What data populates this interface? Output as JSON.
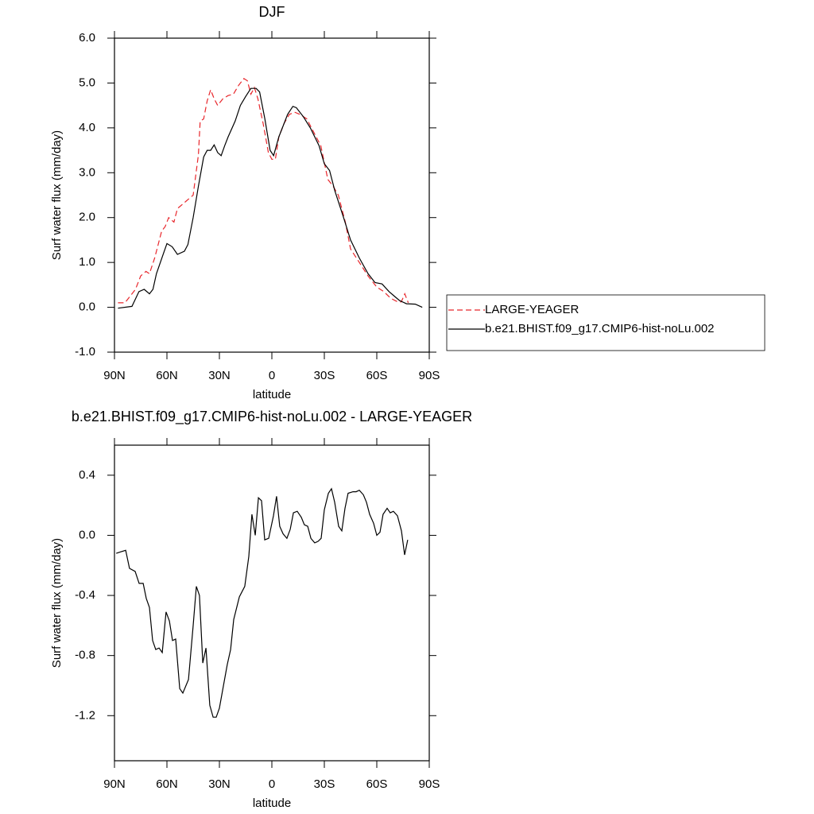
{
  "chart_data": [
    {
      "type": "line",
      "title": "DJF",
      "xlabel": "latitude",
      "ylabel": "Surf water flux (mm/day)",
      "xlim": [
        90,
        -90
      ],
      "ylim": [
        -1,
        6
      ],
      "xticks": [
        {
          "value": 90,
          "label": "90N"
        },
        {
          "value": 60,
          "label": "60N"
        },
        {
          "value": 30,
          "label": "30N"
        },
        0,
        {
          "value": -30,
          "label": "30S"
        },
        {
          "value": -60,
          "label": "60S"
        },
        {
          "value": -90,
          "label": "90S"
        }
      ],
      "yticks": [
        {
          "value": -1,
          "label": "-1.0"
        },
        {
          "value": 0,
          "label": "0.0"
        },
        {
          "value": 1,
          "label": "1.0"
        },
        {
          "value": 2,
          "label": "2.0"
        },
        {
          "value": 3,
          "label": "3.0"
        },
        {
          "value": 4,
          "label": "4.0"
        },
        {
          "value": 5,
          "label": "5.0"
        },
        {
          "value": 6,
          "label": "6.0"
        }
      ],
      "series": [
        {
          "name": "LARGE-YEAGER",
          "color": "#e8262b",
          "line_style": "dashed",
          "x": [
            88,
            84,
            81,
            78,
            75,
            72,
            70,
            67,
            63,
            61,
            59,
            56,
            54,
            51,
            48,
            45,
            42,
            41,
            39,
            37,
            35,
            33,
            31,
            28,
            25,
            22,
            19,
            16,
            14,
            12,
            10,
            8,
            5,
            2,
            0,
            -2,
            -4,
            -7,
            -10,
            -13,
            -16,
            -20,
            -24,
            -28,
            -32,
            -35,
            -38,
            -42,
            -45,
            -50,
            -55,
            -60,
            -64,
            -68,
            -72,
            -74,
            -76,
            -78
          ],
          "values": [
            0.1,
            0.1,
            0.25,
            0.4,
            0.7,
            0.8,
            0.75,
            1.1,
            1.7,
            1.8,
            2.0,
            1.9,
            2.2,
            2.3,
            2.4,
            2.5,
            3.4,
            4.15,
            4.2,
            4.6,
            4.85,
            4.65,
            4.5,
            4.65,
            4.72,
            4.75,
            4.95,
            5.1,
            5.05,
            4.75,
            4.9,
            4.65,
            4.1,
            3.45,
            3.3,
            3.3,
            3.8,
            4.1,
            4.3,
            4.35,
            4.3,
            4.2,
            3.9,
            3.6,
            2.85,
            2.7,
            2.5,
            1.9,
            1.3,
            1.0,
            0.7,
            0.45,
            0.35,
            0.2,
            0.12,
            0.12,
            0.3,
            0.1
          ]
        },
        {
          "name": "b.e21.BHIST.f09_g17.CMIP6-hist-noLu.002",
          "color": "#000000",
          "line_style": "solid",
          "x": [
            88,
            80,
            76,
            73,
            70,
            68,
            66,
            62,
            60,
            57,
            54,
            50,
            48,
            45,
            42,
            39,
            37,
            35,
            33,
            31,
            29,
            27,
            25,
            21,
            18,
            15,
            12,
            9,
            7,
            4,
            1,
            -1,
            -4,
            -6,
            -9,
            -12,
            -14,
            -18,
            -22,
            -27,
            -30,
            -33,
            -36,
            -41,
            -45,
            -50,
            -55,
            -59,
            -63,
            -67,
            -70,
            -73,
            -77,
            -82,
            -86
          ],
          "values": [
            -0.02,
            0.02,
            0.35,
            0.4,
            0.3,
            0.4,
            0.75,
            1.2,
            1.42,
            1.35,
            1.18,
            1.25,
            1.4,
            2.0,
            2.7,
            3.35,
            3.5,
            3.5,
            3.62,
            3.45,
            3.38,
            3.6,
            3.8,
            4.15,
            4.5,
            4.7,
            4.88,
            4.88,
            4.8,
            4.2,
            3.5,
            3.38,
            3.8,
            4.0,
            4.3,
            4.48,
            4.45,
            4.25,
            4.0,
            3.6,
            3.2,
            3.05,
            2.6,
            2.0,
            1.5,
            1.1,
            0.75,
            0.55,
            0.52,
            0.35,
            0.25,
            0.15,
            0.08,
            0.07,
            0.0
          ]
        }
      ]
    },
    {
      "type": "line",
      "title": "b.e21.BHIST.f09_g17.CMIP6-hist-noLu.002 - LARGE-YEAGER",
      "xlabel": "latitude",
      "ylabel": "Surf water flux (mm/day)",
      "xlim": [
        90,
        -90
      ],
      "ylim": [
        -1.5,
        0.6
      ],
      "xticks": [
        {
          "value": 90,
          "label": "90N"
        },
        {
          "value": 60,
          "label": "60N"
        },
        {
          "value": 30,
          "label": "30N"
        },
        0,
        {
          "value": -30,
          "label": "30S"
        },
        {
          "value": -60,
          "label": "60S"
        },
        {
          "value": -90,
          "label": "90S"
        }
      ],
      "yticks": [
        -1.2,
        -0.8,
        -0.4,
        {
          "value": 0,
          "label": "0.0"
        },
        0.4
      ],
      "series": [
        {
          "color": "#000000",
          "line_style": "solid",
          "x": [
            89,
            86.4,
            83.6,
            81.4,
            78.2,
            75.9,
            73.6,
            71.8,
            70,
            68.2,
            66.4,
            64.5,
            62.7,
            60.5,
            58.6,
            56.8,
            55,
            52.7,
            50.9,
            47.7,
            45,
            43.2,
            41.4,
            39.5,
            37.7,
            35.5,
            33.6,
            31.8,
            30,
            27.7,
            25.5,
            23.6,
            21.8,
            18.6,
            15.5,
            13.2,
            11.4,
            9.5,
            7.7,
            5.9,
            4.1,
            1.8,
            -0.9,
            -2.7,
            -4.5,
            -6.4,
            -8.6,
            -10.5,
            -12.3,
            -14.5,
            -16.8,
            -18.6,
            -20.5,
            -22.3,
            -24.5,
            -26.4,
            -28.2,
            -30,
            -32.3,
            -34.1,
            -35.9,
            -38.2,
            -40,
            -41.8,
            -43.6,
            -46.4,
            -48.2,
            -50,
            -52.3,
            -54.1,
            -55.9,
            -58.2,
            -60,
            -61.8,
            -63.6,
            -65.9,
            -67.7,
            -69.5,
            -71.8,
            -74.1,
            -75.9,
            -77.7
          ],
          "values": [
            -0.12,
            -0.11,
            -0.1,
            -0.22,
            -0.24,
            -0.32,
            -0.32,
            -0.42,
            -0.48,
            -0.7,
            -0.76,
            -0.75,
            -0.78,
            -0.51,
            -0.57,
            -0.7,
            -0.69,
            -1.02,
            -1.05,
            -0.96,
            -0.6,
            -0.34,
            -0.4,
            -0.85,
            -0.75,
            -1.13,
            -1.21,
            -1.21,
            -1.15,
            -1.0,
            -0.86,
            -0.76,
            -0.56,
            -0.41,
            -0.34,
            -0.14,
            0.14,
            0.0,
            0.25,
            0.23,
            -0.03,
            -0.02,
            0.13,
            0.26,
            0.06,
            0.01,
            -0.02,
            0.04,
            0.15,
            0.16,
            0.12,
            0.07,
            0.06,
            -0.02,
            -0.05,
            -0.04,
            -0.02,
            0.17,
            0.28,
            0.31,
            0.22,
            0.06,
            0.03,
            0.18,
            0.28,
            0.29,
            0.29,
            0.3,
            0.27,
            0.22,
            0.14,
            0.08,
            0.0,
            0.02,
            0.14,
            0.18,
            0.15,
            0.16,
            0.13,
            0.03,
            -0.13,
            -0.03
          ]
        }
      ]
    }
  ]
}
